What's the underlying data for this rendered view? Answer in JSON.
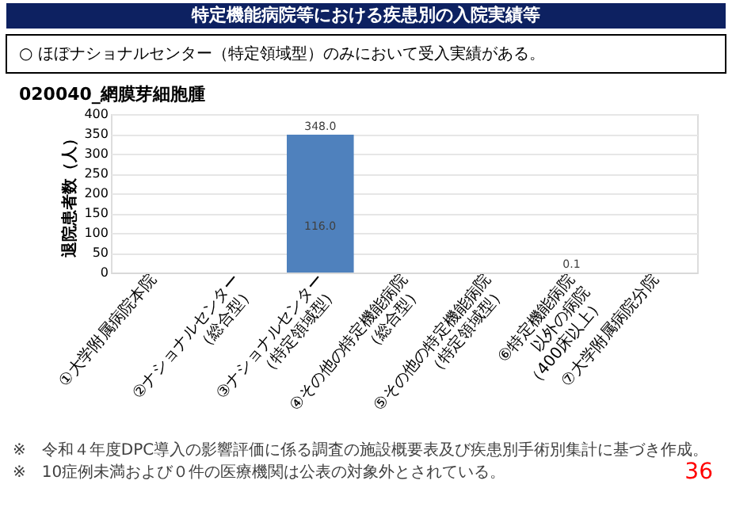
{
  "chart_data": {
    "type": "bar",
    "title": "特定機能病院等における疾患別の入院実績等",
    "subtitle": "○ ほぼナショナルセンター（特定領域型）のみにおいて受入実績がある。",
    "ylabel": "退院患者数（人）",
    "categories": [
      "①大学附属病院本院",
      "②ナショナルセンター\n（総合型）",
      "③ナショナルセンター\n（特定領域型）",
      "④その他の特定機能病院\n（総合型）",
      "⑤その他の特定機能病院\n（特定領域型）",
      "⑥特定機能病院\n以外の病院\n（400床以上）",
      "⑦大学附属病院分院"
    ],
    "values": [
      0,
      0,
      348,
      0,
      0,
      0.1,
      0
    ],
    "value_labels": [
      null,
      null,
      "348.0",
      null,
      null,
      "0.1",
      null
    ],
    "color": "#4f81bd",
    "ylim": [
      0,
      400
    ],
    "yticks": [
      0,
      50,
      100,
      150,
      200,
      250,
      300,
      350,
      400
    ],
    "grid": "y",
    "annotations": [
      "020040_網膜芽細胞腫",
      "116.0",
      "※　令和４年度DPC導入の影響評価に係る調査の施設概要表及び疾患別手術別集計に基づき作成。",
      "※　10症例未満および０件の医療機関は公表の対象外とされている。",
      "36"
    ]
  }
}
